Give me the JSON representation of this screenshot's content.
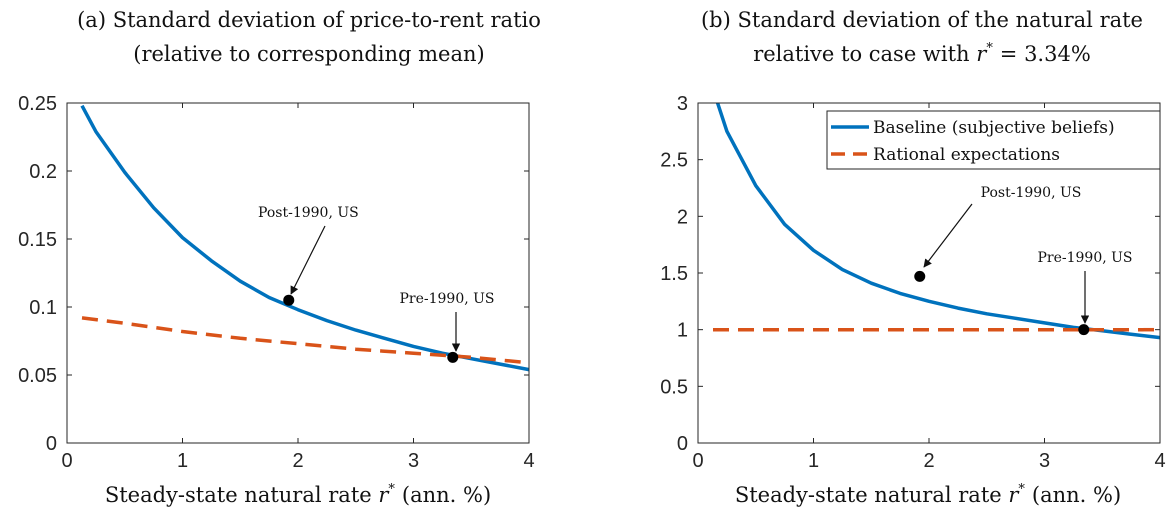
{
  "chart_data": [
    {
      "type": "line",
      "title_line1": "(a) Standard deviation of price-to-rent ratio",
      "title_line2": "(relative to corresponding mean)",
      "xlabel": "Steady-state natural rate r* (ann. %)",
      "ylabel": "",
      "xlim": [
        0,
        4
      ],
      "ylim": [
        0,
        0.25
      ],
      "x_ticks": [
        "0",
        "1",
        "2",
        "3",
        "4"
      ],
      "y_ticks": [
        "0",
        "0.05",
        "0.1",
        "0.15",
        "0.2",
        "0.25"
      ],
      "grid": false,
      "legend": "none",
      "series": [
        {
          "style": "solid",
          "color": "#0072BD",
          "x": [
            0.13,
            0.25,
            0.5,
            0.75,
            1.0,
            1.25,
            1.5,
            1.75,
            2.0,
            2.25,
            2.5,
            2.75,
            3.0,
            3.25,
            3.5,
            3.75,
            4.0
          ],
          "y": [
            0.248,
            0.229,
            0.199,
            0.173,
            0.151,
            0.134,
            0.119,
            0.107,
            0.098,
            0.09,
            0.083,
            0.077,
            0.071,
            0.066,
            0.062,
            0.058,
            0.054
          ]
        },
        {
          "style": "dashed",
          "color": "#D95319",
          "x": [
            0.13,
            0.5,
            1.0,
            1.5,
            2.0,
            2.5,
            3.0,
            3.5,
            4.0
          ],
          "y": [
            0.092,
            0.088,
            0.082,
            0.077,
            0.073,
            0.069,
            0.066,
            0.063,
            0.059
          ]
        }
      ],
      "points": [
        {
          "label": "Post-1990, US",
          "x": 1.92,
          "y": 0.105
        },
        {
          "label": "Pre-1990, US",
          "x": 3.34,
          "y": 0.063
        }
      ]
    },
    {
      "type": "line",
      "title_line1": "(b) Standard deviation of the natural rate",
      "title_line2": "relative to case with r* = 3.34%",
      "xlabel": "Steady-state natural rate r* (ann. %)",
      "ylabel": "",
      "xlim": [
        0,
        4
      ],
      "ylim": [
        0,
        3
      ],
      "x_ticks": [
        "0",
        "1",
        "2",
        "3",
        "4"
      ],
      "y_ticks": [
        "0",
        "0.5",
        "1",
        "1.5",
        "2",
        "2.5",
        "3"
      ],
      "grid": false,
      "legend": "top-right",
      "series": [
        {
          "name": "Baseline (subjective beliefs)",
          "style": "solid",
          "color": "#0072BD",
          "x": [
            0.17,
            0.25,
            0.5,
            0.75,
            1.0,
            1.25,
            1.5,
            1.75,
            2.0,
            2.25,
            2.5,
            2.75,
            3.0,
            3.25,
            3.5,
            3.75,
            4.0
          ],
          "y": [
            3.0,
            2.75,
            2.27,
            1.93,
            1.7,
            1.53,
            1.41,
            1.32,
            1.25,
            1.19,
            1.14,
            1.1,
            1.06,
            1.02,
            0.99,
            0.96,
            0.93
          ]
        },
        {
          "name": "Rational expectations",
          "style": "dashed",
          "color": "#D95319",
          "x": [
            0.13,
            4.0
          ],
          "y": [
            1.0,
            1.0
          ]
        }
      ],
      "points": [
        {
          "label": "Post-1990, US",
          "x": 1.92,
          "y": 1.47
        },
        {
          "label": "Pre-1990, US",
          "x": 3.34,
          "y": 1.0
        }
      ]
    }
  ]
}
